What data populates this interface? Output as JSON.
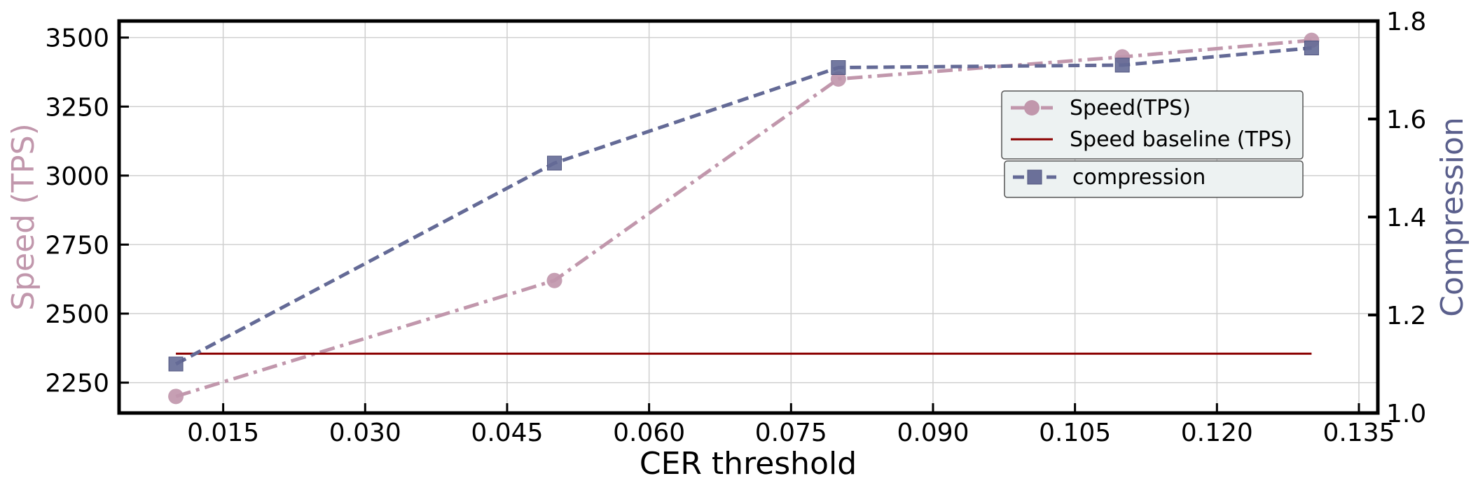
{
  "chart_data": {
    "type": "line",
    "xlabel": "CER threshold",
    "ylabel_left": "Speed (TPS)",
    "ylabel_right": "Compression",
    "xlim": [
      0.004,
      0.137
    ],
    "ylim_left": [
      2140,
      3560
    ],
    "ylim_right": [
      1.0,
      1.8
    ],
    "xticks": [
      "0.015",
      "0.030",
      "0.045",
      "0.060",
      "0.075",
      "0.090",
      "0.105",
      "0.120",
      "0.135"
    ],
    "yticks_left": [
      "2250",
      "2500",
      "2750",
      "3000",
      "3250",
      "3500"
    ],
    "yticks_right": [
      "1.0",
      "1.2",
      "1.4",
      "1.6",
      "1.8"
    ],
    "grid": true,
    "x": [
      0.01,
      0.05,
      0.08,
      0.11,
      0.13
    ],
    "series": [
      {
        "name": "Speed(TPS)",
        "axis": "left",
        "values": [
          2200,
          2620,
          3350,
          3430,
          3490
        ],
        "color": "#c197ac",
        "marker": "circle",
        "linestyle": "dashdot"
      },
      {
        "name": "Speed baseline (TPS)",
        "axis": "left",
        "x": [
          0.01,
          0.13
        ],
        "values": [
          2355,
          2355
        ],
        "color": "#8b0000",
        "marker": "none",
        "linestyle": "solid"
      },
      {
        "name": "compression",
        "axis": "right",
        "values": [
          1.1,
          1.51,
          1.705,
          1.71,
          1.745
        ],
        "color": "#646a96",
        "marker": "square",
        "linestyle": "dashed"
      }
    ],
    "legend_position": "right"
  }
}
